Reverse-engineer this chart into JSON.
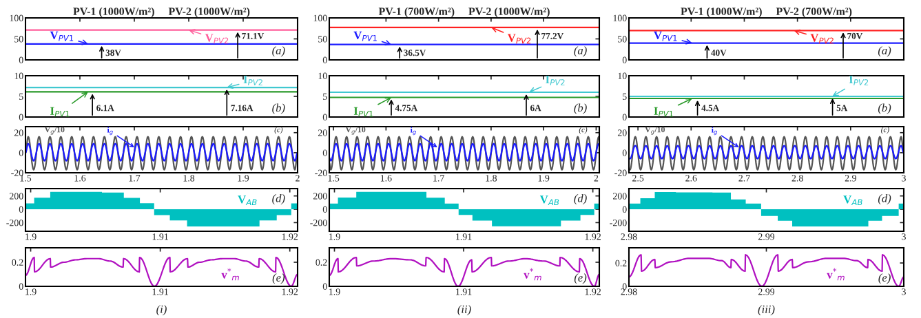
{
  "chart_data": [
    {
      "type": "line",
      "title": "PV-1 (1000W/m²)     PV-2 (1000W/m²)",
      "x": [
        1.5,
        2
      ],
      "xlim": [
        1.5,
        2
      ],
      "xticks": [
        {
          "value": 1.6,
          "label": null
        },
        {
          "value": 1.7,
          "label": null
        },
        {
          "value": 1.8,
          "label": null
        },
        {
          "value": 1.9,
          "label": null
        }
      ],
      "ylim": [
        0,
        100
      ],
      "yticks": [
        0,
        50,
        100
      ],
      "tick_labels": "y",
      "series": [
        {
          "name": "V$_{PV1}$",
          "color": "#1c1cff",
          "values": [
            38,
            38
          ]
        },
        {
          "name": "V$_{PV2}$",
          "color": "#ff5c9a",
          "values": [
            71.1,
            71.1
          ]
        }
      ],
      "annotations": [
        {
          "text": "38V",
          "x": 1.64,
          "y": 38
        },
        {
          "text": "71.1V",
          "x": 1.89,
          "y": 71.1
        },
        "(a)"
      ]
    },
    {
      "type": "line",
      "title": "PV-1 (700W/m²)     PV-2 (1000W/m²)",
      "x": [
        1.492,
        2.006
      ],
      "xlim": [
        1.492,
        2.006
      ],
      "xticks": [
        {
          "value": 1.6,
          "label": null
        },
        {
          "value": 1.7,
          "label": null
        },
        {
          "value": 1.8,
          "label": null
        },
        {
          "value": 1.9,
          "label": null
        }
      ],
      "ylim": [
        0,
        100
      ],
      "yticks": [
        0,
        50,
        100
      ],
      "tick_labels": "y",
      "series": [
        {
          "name": "V$_{PV1}$",
          "color": "#1c1cff",
          "values": [
            36.5,
            36.5
          ]
        },
        {
          "name": "V$_{PV2}$",
          "color": "#ff2020",
          "values": [
            77.2,
            77.2
          ]
        }
      ],
      "annotations": [
        {
          "text": "36.5V",
          "x": 1.626,
          "y": 36.5
        },
        {
          "text": "77.2V",
          "x": 1.888,
          "y": 77.2
        },
        "(a)"
      ]
    },
    {
      "type": "line",
      "title": "PV-1 (1000W/m²)     PV-2 (700W/m²)",
      "x": [
        2.483,
        3
      ],
      "xlim": [
        2.483,
        3
      ],
      "xticks": [
        {
          "value": 2.6,
          "label": null
        },
        {
          "value": 2.7,
          "label": null
        },
        {
          "value": 2.8,
          "label": null
        },
        {
          "value": 2.9,
          "label": null
        }
      ],
      "ylim": [
        0,
        100
      ],
      "yticks": [
        0,
        50,
        100
      ],
      "tick_labels": "y",
      "series": [
        {
          "name": "V$_{PV1}$",
          "color": "#1c1cff",
          "values": [
            40,
            40
          ]
        },
        {
          "name": "V$_{PV2}$",
          "color": "#ff2020",
          "values": [
            70,
            70
          ]
        }
      ],
      "annotations": [
        {
          "text": "40V",
          "x": 2.63,
          "y": 40
        },
        {
          "text": "70V",
          "x": 2.886,
          "y": 70
        },
        "(a)"
      ]
    },
    {
      "type": "line",
      "x": [
        1.5,
        2
      ],
      "xlim": [
        1.5,
        2
      ],
      "xticks": [
        {
          "value": 1.6,
          "label": null
        },
        {
          "value": 1.7,
          "label": null
        },
        {
          "value": 1.8,
          "label": null
        },
        {
          "value": 1.9,
          "label": null
        }
      ],
      "ylim": [
        0,
        10
      ],
      "yticks": [
        0,
        5,
        10
      ],
      "tick_labels": "y",
      "series": [
        {
          "name": "I$_{PV1}$",
          "color": "#2a9a2a",
          "values": [
            6.1,
            6.1
          ]
        },
        {
          "name": "I$_{PV2}$",
          "color": "#40c8d0",
          "values": [
            7.16,
            7.16
          ]
        }
      ],
      "annotations": [
        {
          "text": "6.1A",
          "x": 1.623,
          "y": 6.1
        },
        {
          "text": "7.16A",
          "x": 1.87,
          "y": 7.16
        },
        "(b)"
      ]
    },
    {
      "type": "line",
      "x": [
        1.492,
        2.006
      ],
      "xlim": [
        1.492,
        2.006
      ],
      "xticks": [
        {
          "value": 1.6,
          "label": null
        },
        {
          "value": 1.7,
          "label": null
        },
        {
          "value": 1.8,
          "label": null
        },
        {
          "value": 1.9,
          "label": null
        }
      ],
      "ylim": [
        0,
        10
      ],
      "yticks": [
        0,
        5,
        10
      ],
      "tick_labels": "y",
      "series": [
        {
          "name": "I$_{PV1}$",
          "color": "#2a9a2a",
          "values": [
            4.75,
            4.75
          ]
        },
        {
          "name": "I$_{PV2}$",
          "color": "#40c8d0",
          "values": [
            6,
            6
          ]
        }
      ],
      "annotations": [
        {
          "text": "4.75A",
          "x": 1.61,
          "y": 4.75
        },
        {
          "text": "6A",
          "x": 1.867,
          "y": 6
        },
        "(b)"
      ]
    },
    {
      "type": "line",
      "x": [
        2.483,
        3
      ],
      "xlim": [
        2.483,
        3
      ],
      "xticks": [
        {
          "value": 2.6,
          "label": null
        },
        {
          "value": 2.7,
          "label": null
        },
        {
          "value": 2.8,
          "label": null
        },
        {
          "value": 2.9,
          "label": null
        }
      ],
      "ylim": [
        0,
        10
      ],
      "yticks": [
        0,
        5,
        10
      ],
      "tick_labels": "y",
      "series": [
        {
          "name": "I$_{PV1}$",
          "color": "#2a9a2a",
          "values": [
            4.5,
            4.5
          ]
        },
        {
          "name": "I$_{PV2}$",
          "color": "#40c8d0",
          "values": [
            5,
            5
          ]
        }
      ],
      "annotations": [
        {
          "text": "4.5A",
          "x": 2.612,
          "y": 4.5
        },
        {
          "text": "5A",
          "x": 2.866,
          "y": 5
        },
        "(b)"
      ]
    },
    {
      "type": "line",
      "xlim": [
        1.5,
        2
      ],
      "xticks": [
        1.5,
        1.6,
        1.7,
        1.8,
        1.9,
        2
      ],
      "ylim": [
        -20,
        26
      ],
      "yticks": [
        -20,
        0,
        20
      ],
      "x": [
        1.5,
        1.505,
        1.515,
        1.525,
        1.535,
        1.545,
        1.555,
        1.565,
        1.575,
        1.585,
        1.595,
        1.605,
        1.615,
        1.625,
        1.635,
        1.645,
        1.655,
        1.665,
        1.675,
        1.685,
        1.695,
        1.705,
        1.715,
        1.725,
        1.735,
        1.745,
        1.755,
        1.765,
        1.775,
        1.785,
        1.795,
        1.805,
        1.815,
        1.825,
        1.835,
        1.845,
        1.855,
        1.865,
        1.875,
        1.885,
        1.895,
        1.905,
        1.915,
        1.925,
        1.935,
        1.945,
        1.955,
        1.965,
        1.975,
        1.985,
        1.995,
        2
      ],
      "series": [
        {
          "name": "V$_{g}$/10",
          "color": "#555555",
          "values": [
            0,
            16,
            -17,
            16,
            -17,
            16,
            -17,
            16,
            -17,
            16,
            -17,
            16,
            -17,
            16,
            -17,
            16,
            -17,
            16,
            -17,
            16,
            -17,
            16,
            -17,
            16,
            -17,
            16,
            -17,
            16,
            -17,
            16,
            -17,
            16,
            -17,
            16,
            -17,
            16,
            -17,
            16,
            -17,
            16,
            -17,
            16,
            -17,
            16,
            -17,
            16,
            -17,
            16,
            -17,
            16,
            -17,
            0
          ]
        },
        {
          "name": "i$_{g}$",
          "color": "#1a1aff",
          "values": [
            0,
            9,
            -8,
            9,
            -8,
            9,
            -8,
            9,
            -8,
            9,
            -8,
            9,
            -8,
            9,
            -8,
            9,
            -8,
            9,
            -8,
            9,
            -8,
            9,
            -8,
            9,
            -8,
            9,
            -8,
            9,
            -8,
            9,
            -8,
            9,
            -8,
            9,
            -8,
            9,
            -8,
            9,
            -8,
            9,
            -8,
            9,
            -8,
            9,
            -8,
            9,
            -8,
            9,
            -8,
            9,
            -8,
            0
          ]
        }
      ],
      "annotations": [
        "(c)"
      ]
    },
    {
      "type": "line",
      "xlim": [
        1.492,
        2.006
      ],
      "xticks": [
        1.5,
        1.6,
        1.7,
        1.8,
        1.9,
        2
      ],
      "ylim": [
        -20,
        26
      ],
      "yticks": [
        -20,
        0,
        20
      ],
      "x": [
        1.492,
        1.495,
        1.505,
        1.515,
        1.525,
        1.535,
        1.545,
        1.555,
        1.565,
        1.575,
        1.585,
        1.595,
        1.605,
        1.615,
        1.625,
        1.635,
        1.645,
        1.655,
        1.665,
        1.675,
        1.685,
        1.695,
        1.705,
        1.715,
        1.725,
        1.735,
        1.745,
        1.755,
        1.765,
        1.775,
        1.785,
        1.795,
        1.805,
        1.815,
        1.825,
        1.835,
        1.845,
        1.855,
        1.865,
        1.875,
        1.885,
        1.895,
        1.905,
        1.915,
        1.925,
        1.935,
        1.945,
        1.955,
        1.965,
        1.975,
        1.985,
        1.995,
        2.005
      ],
      "series": [
        {
          "name": "V$_{g}$/10",
          "color": "#555555",
          "values": [
            -10,
            -17,
            16,
            -17,
            16,
            -17,
            16,
            -17,
            16,
            -17,
            16,
            -17,
            16,
            -17,
            16,
            -17,
            16,
            -17,
            16,
            -17,
            16,
            -17,
            16,
            -17,
            16,
            -17,
            16,
            -17,
            16,
            -17,
            16,
            -17,
            16,
            -17,
            16,
            -17,
            16,
            -17,
            16,
            -17,
            16,
            -17,
            16,
            -17,
            16,
            -17,
            16,
            -17,
            16,
            -17,
            16,
            -17,
            16
          ]
        },
        {
          "name": "i$_{g}$",
          "color": "#1a1aff",
          "values": [
            -5,
            -8,
            9,
            -8,
            9,
            -8,
            9,
            -8,
            9,
            -8,
            9,
            -8,
            9,
            -8,
            9,
            -8,
            9,
            -8,
            9,
            -8,
            9,
            -8,
            9,
            -8,
            9,
            -8,
            9,
            -8,
            9,
            -8,
            9,
            -8,
            9,
            -8,
            9,
            -8,
            9,
            -8,
            9,
            -8,
            9,
            -8,
            9,
            -8,
            9,
            -8,
            9,
            -8,
            9,
            -8,
            9,
            -8,
            9
          ]
        }
      ],
      "annotations": [
        "(c)"
      ]
    },
    {
      "type": "line",
      "xlim": [
        2.483,
        3
      ],
      "xticks": [
        2.5,
        2.6,
        2.7,
        2.8,
        2.9,
        3
      ],
      "ylim": [
        -20,
        26
      ],
      "yticks": [
        -20,
        0,
        20
      ],
      "x": [
        2.485,
        2.495,
        2.505,
        2.515,
        2.525,
        2.535,
        2.545,
        2.555,
        2.565,
        2.575,
        2.585,
        2.595,
        2.605,
        2.615,
        2.625,
        2.635,
        2.645,
        2.655,
        2.665,
        2.675,
        2.685,
        2.695,
        2.705,
        2.715,
        2.725,
        2.735,
        2.745,
        2.755,
        2.765,
        2.775,
        2.785,
        2.795,
        2.805,
        2.815,
        2.825,
        2.835,
        2.845,
        2.855,
        2.865,
        2.875,
        2.885,
        2.895,
        2.905,
        2.915,
        2.925,
        2.935,
        2.945,
        2.955,
        2.965,
        2.975,
        2.985,
        2.995,
        3
      ],
      "series": [
        {
          "name": "V$_{g}$/10",
          "color": "#555555",
          "values": [
            -17,
            16,
            -17,
            16,
            -17,
            16,
            -17,
            16,
            -17,
            16,
            -17,
            16,
            -17,
            16,
            -17,
            16,
            -17,
            16,
            -17,
            16,
            -17,
            16,
            -17,
            16,
            -17,
            16,
            -17,
            16,
            -17,
            16,
            -17,
            16,
            -17,
            16,
            -17,
            16,
            -17,
            16,
            -17,
            16,
            -17,
            16,
            -17,
            16,
            -17,
            16,
            -17,
            16,
            -17,
            16,
            -17,
            16,
            0
          ]
        },
        {
          "name": "i$_{g}$",
          "color": "#1a1aff",
          "values": [
            -6,
            7,
            -6,
            7,
            -6,
            7,
            -6,
            7,
            -6,
            7,
            -6,
            7,
            -6,
            7,
            -6,
            7,
            -6,
            7,
            -6,
            7,
            -6,
            7,
            -6,
            7,
            -6,
            7,
            -6,
            7,
            -6,
            7,
            -6,
            7,
            -6,
            7,
            -6,
            7,
            -6,
            7,
            -6,
            7,
            -6,
            7,
            -6,
            7,
            -6,
            7,
            -6,
            7,
            -6,
            7,
            -6,
            7,
            0
          ]
        }
      ],
      "annotations": [
        "(c)"
      ]
    },
    {
      "type": "area",
      "xlim": [
        1.8996,
        1.9206
      ],
      "xticks": [
        1.9,
        1.91,
        1.92
      ],
      "ylim": [
        -330,
        310
      ],
      "yticks": [
        -200,
        0,
        200
      ],
      "x": [
        1.8996,
        1.90027,
        1.90151,
        1.9055,
        1.90719,
        1.90843,
        1.90953,
        1.91074,
        1.91207,
        1.91766,
        1.91899,
        1.92011,
        1.9206
      ],
      "series": [
        {
          "name": "V$_{AB}$",
          "color": "#00c0c0",
          "values": [
            87,
            174,
            262,
            250,
            170,
            90,
            -87,
            -167,
            -257,
            -167,
            -87,
            87,
            87
          ]
        }
      ],
      "annotations": [
        "(d)"
      ]
    },
    {
      "type": "area",
      "xlim": [
        1.8996,
        1.9205
      ],
      "xticks": [
        1.9,
        1.91,
        1.92
      ],
      "ylim": [
        -330,
        310
      ],
      "yticks": [
        -200,
        0,
        200
      ],
      "x": [
        1.8996,
        1.90027,
        1.90169,
        1.90712,
        1.90854,
        1.90961,
        1.91068,
        1.91219,
        1.91753,
        1.91904,
        1.92011,
        1.9205
      ],
      "series": [
        {
          "name": "V$_{AB}$",
          "color": "#00c0c0",
          "values": [
            85,
            175,
            262,
            172,
            85,
            -85,
            -170,
            -255,
            -170,
            -85,
            85,
            85
          ]
        }
      ],
      "annotations": [
        "(d)"
      ]
    },
    {
      "type": "area",
      "xlim": [
        2.98,
        3
      ],
      "xticks": [
        2.98,
        2.99,
        3
      ],
      "ylim": [
        -330,
        310
      ],
      "yticks": [
        -200,
        0,
        200
      ],
      "x": [
        2.98,
        2.98083,
        2.98188,
        2.98342,
        2.98608,
        2.98742,
        2.9885,
        2.98962,
        2.99083,
        2.99188,
        2.99742,
        2.99842,
        2.99963,
        3
      ],
      "series": [
        {
          "name": "V$_{AB}$",
          "color": "#00c0c0",
          "values": [
            86,
            166,
            259,
            254,
            250,
            148,
            86,
            -101,
            -173,
            -259,
            -173,
            -101,
            86,
            86
          ]
        }
      ],
      "annotations": [
        "(d)"
      ]
    },
    {
      "type": "line",
      "xlim": [
        1.8996,
        1.9206
      ],
      "xticks": [
        1.9,
        1.91,
        1.92
      ],
      "ylim": [
        0,
        0.32
      ],
      "yticks": [
        0,
        0.2
      ],
      "x": [
        1.8996,
        1.90027,
        1.9003,
        1.90151,
        1.90154,
        1.90257,
        1.90346,
        1.90435,
        1.90524,
        1.90612,
        1.90713,
        1.90717,
        1.90838,
        1.90841,
        1.90955,
        1.91074,
        1.91077,
        1.9121,
        1.91214,
        1.91304,
        1.91393,
        1.91482,
        1.91571,
        1.91659,
        1.9176,
        1.91764,
        1.9189,
        1.91893,
        1.92011,
        1.9206
      ],
      "series": [
        {
          "name": "v$^{*}$$_{m}$",
          "color": "#b010c0",
          "values": [
            0.09,
            0.24,
            0.12,
            0.23,
            0.16,
            0.2,
            0.22,
            0.23,
            0.23,
            0.21,
            0.16,
            0.23,
            0.12,
            0.24,
            0,
            0.24,
            0.12,
            0.23,
            0.16,
            0.2,
            0.22,
            0.23,
            0.23,
            0.21,
            0.16,
            0.23,
            0.12,
            0.24,
            0,
            0.1
          ]
        }
      ],
      "annotations": [
        "(e)",
        "(i)"
      ]
    },
    {
      "type": "line",
      "xlim": [
        1.8996,
        1.9205
      ],
      "xticks": [
        1.9,
        1.91,
        1.92
      ],
      "ylim": [
        0,
        0.32
      ],
      "yticks": [
        0,
        0.2
      ],
      "x": [
        1.8996,
        1.90027,
        1.9003,
        1.90169,
        1.90173,
        1.90302,
        1.90445,
        1.90587,
        1.90706,
        1.9071,
        1.90849,
        1.90852,
        1.90957,
        1.91062,
        1.91066,
        1.91214,
        1.91217,
        1.91352,
        1.91477,
        1.91619,
        1.91744,
        1.91747,
        1.91895,
        1.91899,
        1.92011,
        1.9205
      ],
      "series": [
        {
          "name": "v$^{*}$$_{m}$",
          "color": "#b010c0",
          "values": [
            0.09,
            0.23,
            0.12,
            0.24,
            0.17,
            0.21,
            0.23,
            0.22,
            0.17,
            0.24,
            0.12,
            0.23,
            0,
            0.22,
            0.12,
            0.24,
            0.17,
            0.21,
            0.23,
            0.21,
            0.17,
            0.24,
            0.12,
            0.23,
            0,
            0.1
          ]
        }
      ],
      "annotations": [
        "(e)",
        "(ii)"
      ]
    },
    {
      "type": "line",
      "xlim": [
        2.98,
        3
      ],
      "xticks": [
        2.98,
        2.99,
        3
      ],
      "ylim": [
        0,
        0.33
      ],
      "yticks": [
        0,
        0.2
      ],
      "x": [
        2.98,
        2.98088,
        2.98092,
        2.98188,
        2.98192,
        2.98308,
        2.98442,
        2.98575,
        2.98675,
        2.98742,
        2.98745,
        2.98845,
        2.98848,
        2.98967,
        2.99083,
        2.99087,
        2.99188,
        2.99192,
        2.99308,
        2.99442,
        2.99558,
        2.99658,
        2.99737,
        2.9974,
        2.99842,
        2.99845,
        2.99963,
        3
      ],
      "series": [
        {
          "name": "v$^{*}$$_{m}$",
          "color": "#b010c0",
          "values": [
            0.08,
            0.27,
            0.13,
            0.23,
            0.16,
            0.21,
            0.24,
            0.24,
            0.22,
            0.16,
            0.23,
            0.13,
            0.27,
            0,
            0.27,
            0.13,
            0.23,
            0.16,
            0.21,
            0.24,
            0.24,
            0.22,
            0.16,
            0.23,
            0.13,
            0.27,
            0,
            0.08
          ]
        }
      ],
      "annotations": [
        "(e)",
        "(iii)"
      ]
    }
  ]
}
